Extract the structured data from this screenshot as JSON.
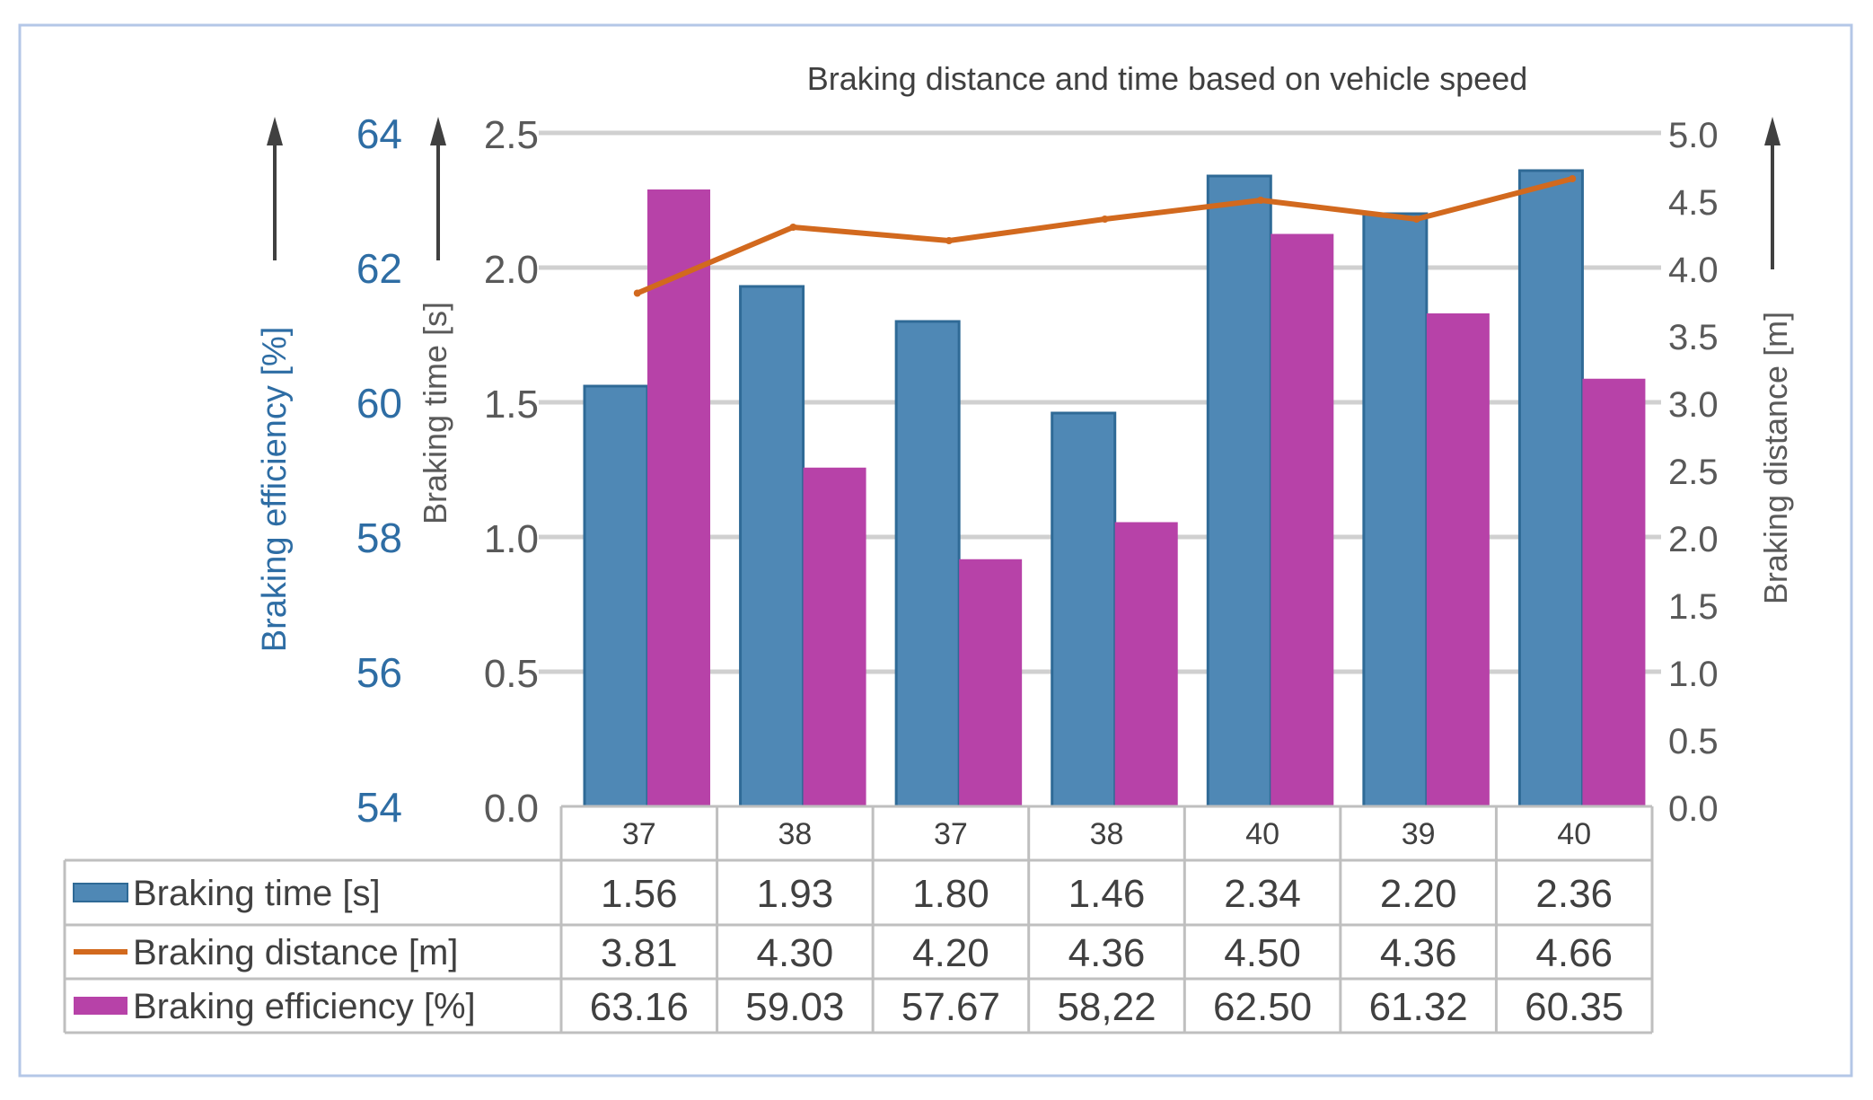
{
  "chart_data": {
    "type": "bar",
    "title": "Braking distance and time  based on vehicle speed",
    "categories": [
      "37",
      "38",
      "37",
      "38",
      "40",
      "39",
      "40"
    ],
    "series": [
      {
        "name": "Braking time [s]",
        "kind": "bar",
        "axis": "time",
        "color": "#4f88b5",
        "values": [
          1.56,
          1.93,
          1.8,
          1.46,
          2.34,
          2.2,
          2.36
        ],
        "labels": [
          "1.56",
          "1.93",
          "1.80",
          "1.46",
          "2.34",
          "2.20",
          "2.36"
        ]
      },
      {
        "name": "Braking distance [m]",
        "kind": "line",
        "axis": "distance",
        "color": "#d2691e",
        "values": [
          3.81,
          4.3,
          4.2,
          4.36,
          4.5,
          4.36,
          4.66
        ],
        "labels": [
          "3.81",
          "4.30",
          "4.20",
          "4.36",
          "4.50",
          "4.36",
          "4.66"
        ]
      },
      {
        "name": "Braking efficiency [%]",
        "kind": "bar",
        "axis": "efficiency",
        "color": "#b742a8",
        "values": [
          63.16,
          59.03,
          57.67,
          58.22,
          62.5,
          61.32,
          60.35
        ],
        "labels": [
          "63.16",
          "59.03",
          "57.67",
          "58,22",
          "62.50",
          "61.32",
          "60.35"
        ]
      }
    ],
    "axes": {
      "efficiency": {
        "label": "Braking efficiency [%]",
        "min": 54,
        "max": 64,
        "ticks": [
          "54",
          "56",
          "58",
          "60",
          "62",
          "64"
        ],
        "color": "#2e6da4"
      },
      "time": {
        "label": "Braking time [s]",
        "min": 0,
        "max": 2.5,
        "ticks": [
          "0.0",
          "0.5",
          "1.0",
          "1.5",
          "2.0",
          "2.5"
        ],
        "color": "#595959"
      },
      "distance": {
        "label": "Braking distance [m]",
        "min": 0,
        "max": 5,
        "ticks": [
          "0.0",
          "0.5",
          "1.0",
          "1.5",
          "2.0",
          "2.5",
          "3.0",
          "3.5",
          "4.0",
          "4.5",
          "5.0"
        ],
        "color": "#595959"
      }
    },
    "grid": true,
    "legend": "data-table-bottom"
  }
}
